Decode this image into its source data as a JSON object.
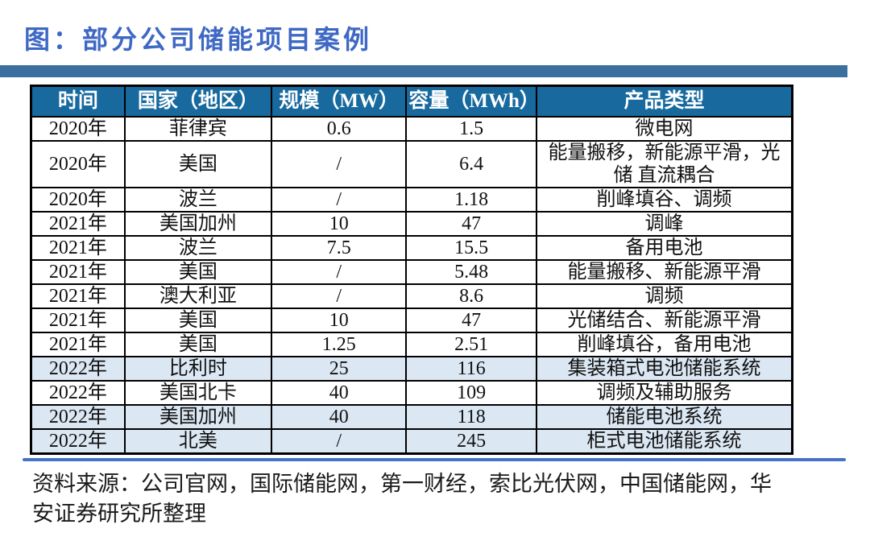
{
  "title": "图：部分公司储能项目案例",
  "colors": {
    "title_blue": "#3E68C4",
    "divider_bar_blue": "#3A6F9F",
    "table_header_bg": "#17699E",
    "table_header_text": "#FFFFFF",
    "highlight_row_bg": "#DBE7F3",
    "bottom_rule_blue": "#4673C8",
    "table_border": "#000000"
  },
  "table": {
    "headers": [
      "时间",
      "国家（地区）",
      "规模（MW）",
      "容量（MWh）",
      "产品类型"
    ],
    "rows": [
      {
        "time": "2020年",
        "country": "菲律宾",
        "scale": "0.6",
        "capacity": "1.5",
        "product": "微电网",
        "highlighted": false
      },
      {
        "time": "2020年",
        "country": "美国",
        "scale": "/",
        "capacity": "6.4",
        "product": "能量搬移，新能源平滑，光储 直流耦合",
        "highlighted": false
      },
      {
        "time": "2020年",
        "country": "波兰",
        "scale": "/",
        "capacity": "1.18",
        "product": "削峰填谷、调频",
        "highlighted": false
      },
      {
        "time": "2021年",
        "country": "美国加州",
        "scale": "10",
        "capacity": "47",
        "product": "调峰",
        "highlighted": false
      },
      {
        "time": "2021年",
        "country": "波兰",
        "scale": "7.5",
        "capacity": "15.5",
        "product": "备用电池",
        "highlighted": false
      },
      {
        "time": "2021年",
        "country": "美国",
        "scale": "/",
        "capacity": "5.48",
        "product": "能量搬移、新能源平滑",
        "highlighted": false
      },
      {
        "time": "2021年",
        "country": "澳大利亚",
        "scale": "/",
        "capacity": "8.6",
        "product": "调频",
        "highlighted": false
      },
      {
        "time": "2021年",
        "country": "美国",
        "scale": "10",
        "capacity": "47",
        "product": "光储结合、新能源平滑",
        "highlighted": false
      },
      {
        "time": "2021年",
        "country": "美国",
        "scale": "1.25",
        "capacity": "2.51",
        "product": "削峰填谷，备用电池",
        "highlighted": false
      },
      {
        "time": "2022年",
        "country": "比利时",
        "scale": "25",
        "capacity": "116",
        "product": "集装箱式电池储能系统",
        "highlighted": true
      },
      {
        "time": "2022年",
        "country": "美国北卡",
        "scale": "40",
        "capacity": "109",
        "product": "调频及辅助服务",
        "highlighted": false
      },
      {
        "time": "2022年",
        "country": "美国加州",
        "scale": "40",
        "capacity": "118",
        "product": "储能电池系统",
        "highlighted": true
      },
      {
        "time": "2022年",
        "country": "北美",
        "scale": "/",
        "capacity": "245",
        "product": "柜式电池储能系统",
        "highlighted": true
      }
    ]
  },
  "footer": {
    "source": "资料来源：公司官网，国际储能网，第一财经，索比光伏网，中国储能网，华安证券研究所整理"
  }
}
